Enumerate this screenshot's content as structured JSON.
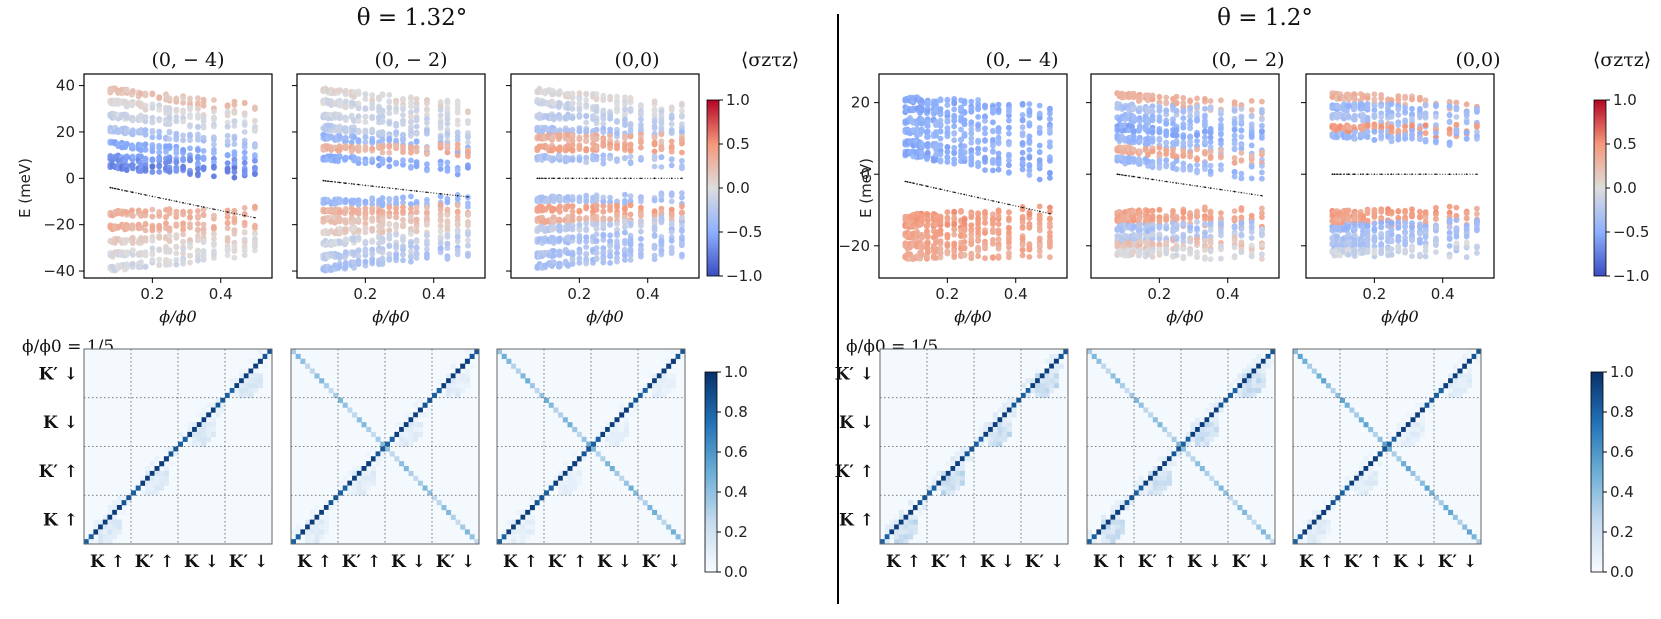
{
  "figure": {
    "divider": true
  },
  "colors": {
    "cool": "#3b4cc0",
    "neutral": "#dddddd",
    "warm": "#b40426",
    "blues_low": "#f7fbff",
    "blues_high": "#08306b"
  },
  "chart_data": [
    {
      "type": "scatter",
      "group": "theta_132",
      "group_title": "θ = 1.32°",
      "colorbar_label": "⟨σzτz⟩",
      "colorbar_range": [
        -1.0,
        1.0
      ],
      "colorbar_ticks": [
        "1.0",
        "0.5",
        "0.0",
        "−0.5",
        "−1.0"
      ],
      "ylabel": "E (meV)",
      "xlabel": "ϕ/ϕ0",
      "xlim": [
        0.0,
        0.55
      ],
      "ylim": [
        -43,
        45
      ],
      "yticks": [
        40,
        20,
        0,
        -20,
        -40
      ],
      "ytick_labels": [
        "40",
        "20",
        "0",
        "−20",
        "−40"
      ],
      "xticks": [
        0.2,
        0.4
      ],
      "xtick_labels": [
        "0.2",
        "0.4"
      ],
      "panels": [
        {
          "title": "(0, − 4)",
          "gap_start": -4,
          "gap_end": -17,
          "upper_bands": [
            [
              38,
              30,
              0.2
            ],
            [
              33,
              25,
              0.0
            ],
            [
              27,
              22,
              -0.1
            ],
            [
              21,
              15,
              -0.3
            ],
            [
              15,
              8,
              -0.5
            ],
            [
              9,
              5,
              -0.6
            ],
            [
              5,
              2,
              -0.7
            ]
          ],
          "lower_bands": [
            [
              -15,
              -15,
              0.3
            ],
            [
              -21,
              -21,
              0.3
            ],
            [
              -27,
              -25,
              0.1
            ],
            [
              -33,
              -28,
              0.0
            ],
            [
              -39,
              -31,
              -0.05
            ]
          ],
          "band_spread": 1.0
        },
        {
          "title": "(0, − 2)",
          "gap_start": -1,
          "gap_end": -8,
          "upper_bands": [
            [
              38,
              30,
              0.05
            ],
            [
              33,
              26,
              -0.05
            ],
            [
              27,
              22,
              -0.1
            ],
            [
              22,
              17,
              -0.2
            ],
            [
              18,
              12,
              -0.4
            ],
            [
              13,
              12,
              0.3
            ],
            [
              9,
              4,
              -0.5
            ]
          ],
          "lower_bands": [
            [
              -10,
              -10,
              -0.4
            ],
            [
              -14,
              -14,
              0.3
            ],
            [
              -18,
              -18,
              0.2
            ],
            [
              -23,
              -20,
              0.1
            ],
            [
              -28,
              -24,
              -0.1
            ],
            [
              -34,
              -27,
              -0.2
            ],
            [
              -39,
              -31,
              -0.3
            ]
          ],
          "band_spread": 1.0
        },
        {
          "title": "(0,0)",
          "gap_start": 0,
          "gap_end": 0,
          "upper_bands": [
            [
              38,
              30,
              0.0
            ],
            [
              33,
              26,
              -0.1
            ],
            [
              27,
              23,
              -0.2
            ],
            [
              21,
              18,
              -0.3
            ],
            [
              18,
              16,
              0.3
            ],
            [
              13,
              14,
              0.4
            ],
            [
              9,
              7,
              -0.3
            ]
          ],
          "lower_bands": [
            [
              -9,
              -9,
              -0.3
            ],
            [
              -13,
              -14,
              0.4
            ],
            [
              -18,
              -17,
              0.3
            ],
            [
              -22,
              -19,
              -0.2
            ],
            [
              -27,
              -24,
              -0.3
            ],
            [
              -33,
              -28,
              -0.3
            ],
            [
              -38,
              -31,
              -0.3
            ]
          ],
          "band_spread": 1.0
        }
      ],
      "matrix_title": "ϕ/ϕ0 = 1/5",
      "matrix_row_labels": [
        "K′ ↓",
        "K ↓",
        "K′ ↑",
        "K ↑"
      ],
      "matrix_col_labels": [
        "K ↑",
        "K′ ↑",
        "K ↓",
        "K′ ↓"
      ],
      "matrix_colorbar_ticks": [
        "1.0",
        "0.8",
        "0.6",
        "0.4",
        "0.2",
        "0.0"
      ],
      "matrix_panels": [
        {
          "diagonal": 0.95,
          "anti_diagonal": 0.0,
          "block_offdiag": 0.18
        },
        {
          "diagonal": 0.95,
          "anti_diagonal": 0.45,
          "block_offdiag": 0.15
        },
        {
          "diagonal": 0.95,
          "anti_diagonal": 0.5,
          "block_offdiag": 0.12
        }
      ]
    },
    {
      "type": "scatter",
      "group": "theta_12",
      "group_title": "θ = 1.2°",
      "colorbar_label": "⟨σzτz⟩",
      "colorbar_range": [
        -1.0,
        1.0
      ],
      "colorbar_ticks": [
        "1.0",
        "0.5",
        "0.0",
        "−0.5",
        "−1.0"
      ],
      "ylabel": "E (meV)",
      "xlabel": "ϕ/ϕ0",
      "xlim": [
        0.0,
        0.55
      ],
      "ylim": [
        -29,
        28
      ],
      "yticks": [
        20,
        0,
        -20
      ],
      "ytick_labels": [
        "20",
        "0",
        "−20"
      ],
      "xticks": [
        0.2,
        0.4
      ],
      "xtick_labels": [
        "0.2",
        "0.4"
      ],
      "panels": [
        {
          "title": "(0, − 4)",
          "gap_start": -2,
          "gap_end": -11,
          "upper_bands": [
            [
              21,
              18,
              -0.5
            ],
            [
              18,
              16,
              -0.5
            ],
            [
              15,
              12,
              -0.45
            ],
            [
              12,
              8,
              -0.45
            ],
            [
              9,
              3,
              -0.5
            ],
            [
              6,
              0,
              -0.5
            ]
          ],
          "lower_bands": [
            [
              -12,
              -11,
              0.45
            ],
            [
              -14,
              -13,
              0.45
            ],
            [
              -17,
              -16,
              0.4
            ],
            [
              -20,
              -19,
              0.4
            ],
            [
              -23,
              -21,
              0.35
            ]
          ],
          "band_spread": 0.8
        },
        {
          "title": "(0, − 2)",
          "gap_start": 0,
          "gap_end": -6,
          "upper_bands": [
            [
              22,
              18,
              0.3
            ],
            [
              19,
              16,
              -0.3
            ],
            [
              16,
              12,
              -0.4
            ],
            [
              13,
              10,
              -0.5
            ],
            [
              10,
              6,
              -0.4
            ],
            [
              7,
              4,
              0.35
            ],
            [
              4,
              0,
              -0.4
            ]
          ],
          "lower_bands": [
            [
              -11,
              -11,
              0.4
            ],
            [
              -13,
              -13,
              0.4
            ],
            [
              -15,
              -15,
              -0.3
            ],
            [
              -18,
              -17,
              -0.2
            ],
            [
              -20,
              -19,
              0.2
            ],
            [
              -22,
              -22,
              0.0
            ]
          ],
          "band_spread": 0.8
        },
        {
          "title": "(0,0)",
          "gap_start": 0,
          "gap_end": 0,
          "upper_bands": [
            [
              22,
              19,
              0.3
            ],
            [
              19,
              17,
              -0.4
            ],
            [
              16,
              14,
              -0.3
            ],
            [
              13,
              12,
              0.45
            ],
            [
              11,
              10,
              -0.4
            ]
          ],
          "lower_bands": [
            [
              -11,
              -11,
              0.45
            ],
            [
              -13,
              -13,
              0.4
            ],
            [
              -15,
              -14,
              -0.4
            ],
            [
              -18,
              -16,
              -0.3
            ],
            [
              -20,
              -19,
              -0.3
            ],
            [
              -22,
              -21,
              -0.1
            ]
          ],
          "band_spread": 0.8
        }
      ],
      "matrix_title": "ϕ/ϕ0 = 1/5",
      "matrix_row_labels": [
        "K′ ↓",
        "K ↓",
        "K′ ↑",
        "K ↑"
      ],
      "matrix_col_labels": [
        "K ↑",
        "K′ ↑",
        "K ↓",
        "K′ ↓"
      ],
      "matrix_colorbar_ticks": [
        "1.0",
        "0.8",
        "0.6",
        "0.4",
        "0.2",
        "0.0"
      ],
      "matrix_panels": [
        {
          "diagonal": 0.95,
          "anti_diagonal": 0.0,
          "block_offdiag": 0.3
        },
        {
          "diagonal": 0.95,
          "anti_diagonal": 0.45,
          "block_offdiag": 0.28
        },
        {
          "diagonal": 0.95,
          "anti_diagonal": 0.55,
          "block_offdiag": 0.15
        }
      ]
    }
  ]
}
